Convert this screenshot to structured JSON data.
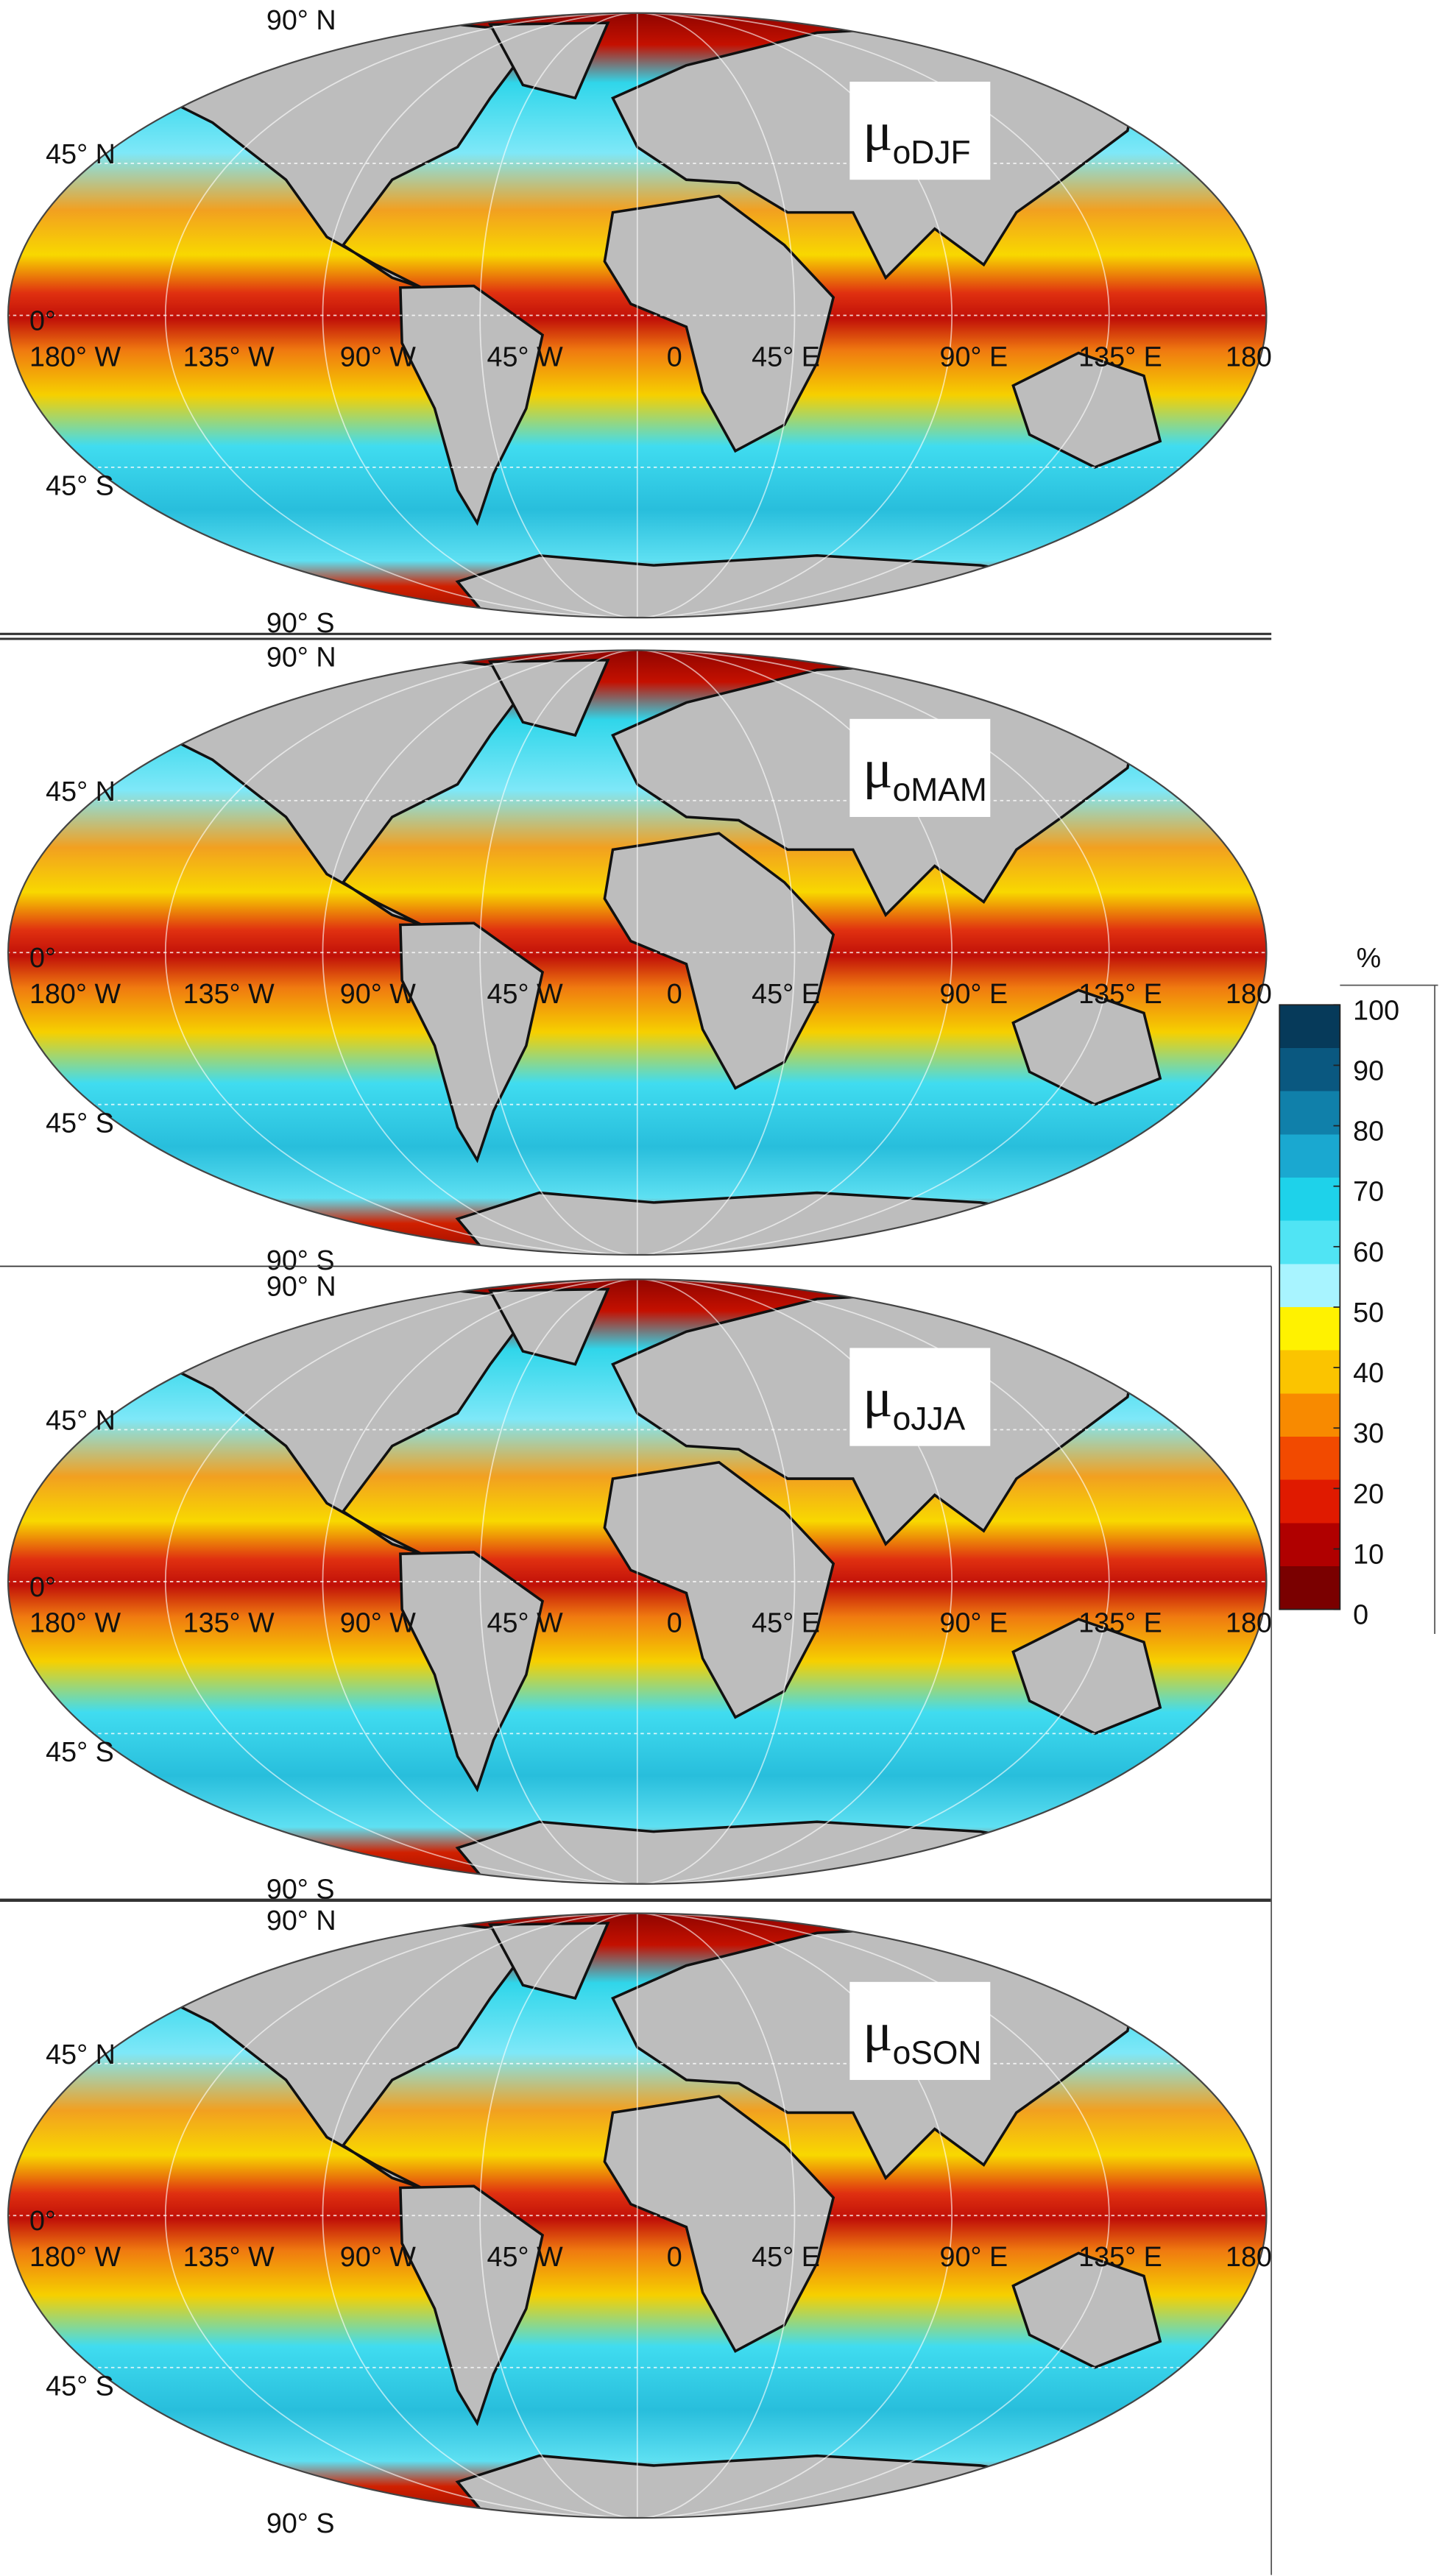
{
  "panels": [
    {
      "symbol": "μ",
      "subscript": "oDJF"
    },
    {
      "symbol": "μ",
      "subscript": "oMAM"
    },
    {
      "symbol": "μ",
      "subscript": "oJJA"
    },
    {
      "symbol": "μ",
      "subscript": "oSON"
    }
  ],
  "graticule_labels": {
    "north_pole": "90° N",
    "lat_45n": "45° N",
    "equator": "0°",
    "lat_45s": "45° S",
    "south_pole": "90° S",
    "longitudes": [
      "180° W",
      "135° W",
      "90° W",
      "45° W",
      "0",
      "45° E",
      "90° E",
      "135° E",
      "180"
    ]
  },
  "colorbar": {
    "title": "%",
    "lim": [
      0,
      100
    ],
    "ticks": [
      0,
      10,
      20,
      30,
      40,
      50,
      60,
      70,
      80,
      90,
      100
    ],
    "colors": [
      "#7a0000",
      "#b00000",
      "#e01a00",
      "#f24a00",
      "#f88a00",
      "#fbc400",
      "#fff200",
      "#a8f4ff",
      "#50e4f4",
      "#1ed2ea",
      "#1aa8d0",
      "#1080aa",
      "#0a5880",
      "#063a5a"
    ]
  }
}
